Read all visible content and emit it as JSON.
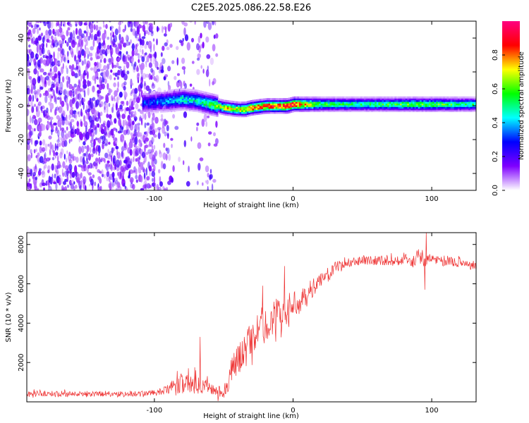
{
  "figure": {
    "title": "C2E5.2025.086.22.58.E26"
  },
  "chart_data": [
    {
      "type": "heatmap",
      "title": "C2E5.2025.086.22.58.E26",
      "xlabel": "Height of straight line (km)",
      "ylabel": "Frequency (Hz)",
      "xlim": [
        -192,
        132
      ],
      "ylim": [
        -50,
        50
      ],
      "xticks": [
        -100,
        0,
        100
      ],
      "yticks": [
        -40,
        -20,
        0,
        20,
        40
      ],
      "grid": false,
      "colorbar": {
        "label": "Normalized spectral amplitude",
        "range": [
          0,
          1
        ],
        "ticks": [
          "0.0",
          "0.2",
          "0.4",
          "0.6",
          "0.8"
        ],
        "colormap": [
          "#ffffff",
          "#7f00ff",
          "#0000ff",
          "#00ffff",
          "#00ff00",
          "#ffff00",
          "#ff0000",
          "#ff0080"
        ]
      },
      "noise_region_km": [
        -192,
        -55
      ],
      "ridge": {
        "x": [
          -105,
          -90,
          -80,
          -70,
          -60,
          -50,
          -40,
          -35,
          -30,
          -20,
          -10,
          -5,
          0,
          5,
          20,
          50,
          90,
          132
        ],
        "y": [
          2,
          3,
          4,
          3,
          1,
          -1,
          -2,
          -2,
          -1,
          0,
          0,
          0,
          1,
          1,
          1,
          1,
          1,
          1
        ],
        "peak_amplitude": [
          0.3,
          0.4,
          0.45,
          0.45,
          0.55,
          0.7,
          0.7,
          0.75,
          0.85,
          0.85,
          0.85,
          0.9,
          0.9,
          0.8,
          0.55,
          0.5,
          0.6,
          0.5
        ]
      }
    },
    {
      "type": "line",
      "xlabel": "Height of straight line (km)",
      "ylabel": "SNR (10 * v/v)",
      "xlim": [
        -192,
        132
      ],
      "ylim": [
        0,
        8600
      ],
      "xticks": [
        -100,
        0,
        100
      ],
      "yticks": [
        2000,
        4000,
        6000,
        8000
      ],
      "grid": false,
      "series": [
        {
          "color": "#ee3333",
          "x": [
            -192,
            -180,
            -160,
            -140,
            -120,
            -105,
            -95,
            -88,
            -82,
            -78,
            -74,
            -70,
            -66,
            -62,
            -58,
            -54,
            -50,
            -46,
            -44,
            -42,
            -38,
            -34,
            -30,
            -26,
            -22,
            -18,
            -14,
            -10,
            -6,
            -2,
            2,
            6,
            10,
            14,
            18,
            22,
            26,
            30,
            36,
            42,
            48,
            54,
            60,
            70,
            80,
            86,
            90,
            94,
            96,
            100,
            110,
            120,
            132
          ],
          "y": [
            400,
            420,
            400,
            420,
            400,
            430,
            500,
            700,
            900,
            1000,
            1100,
            1000,
            900,
            800,
            600,
            500,
            600,
            1100,
            1800,
            1900,
            2300,
            2900,
            3200,
            3500,
            3700,
            4000,
            4300,
            4500,
            4400,
            4800,
            5000,
            5100,
            5400,
            5800,
            6000,
            6300,
            6500,
            6800,
            7000,
            7100,
            7200,
            7200,
            7200,
            7150,
            7200,
            7100,
            7350,
            7300,
            7200,
            7300,
            7100,
            7100,
            6900
          ],
          "noise_amplitude": [
            150,
            150,
            150,
            150,
            150,
            150,
            180,
            300,
            500,
            600,
            700,
            600,
            500,
            400,
            300,
            300,
            400,
            600,
            700,
            700,
            800,
            900,
            900,
            900,
            900,
            850,
            850,
            800,
            750,
            700,
            650,
            600,
            550,
            500,
            450,
            400,
            350,
            300,
            250,
            250,
            250,
            250,
            250,
            250,
            250,
            300,
            450,
            450,
            350,
            250,
            250,
            250,
            250
          ],
          "spikes": [
            {
              "x": -67,
              "y": 3300
            },
            {
              "x": -22,
              "y": 5900
            },
            {
              "x": -6,
              "y": 6900
            },
            {
              "x": 96,
              "y": 8600
            },
            {
              "x": 95,
              "y": 5700
            }
          ]
        }
      ]
    }
  ]
}
